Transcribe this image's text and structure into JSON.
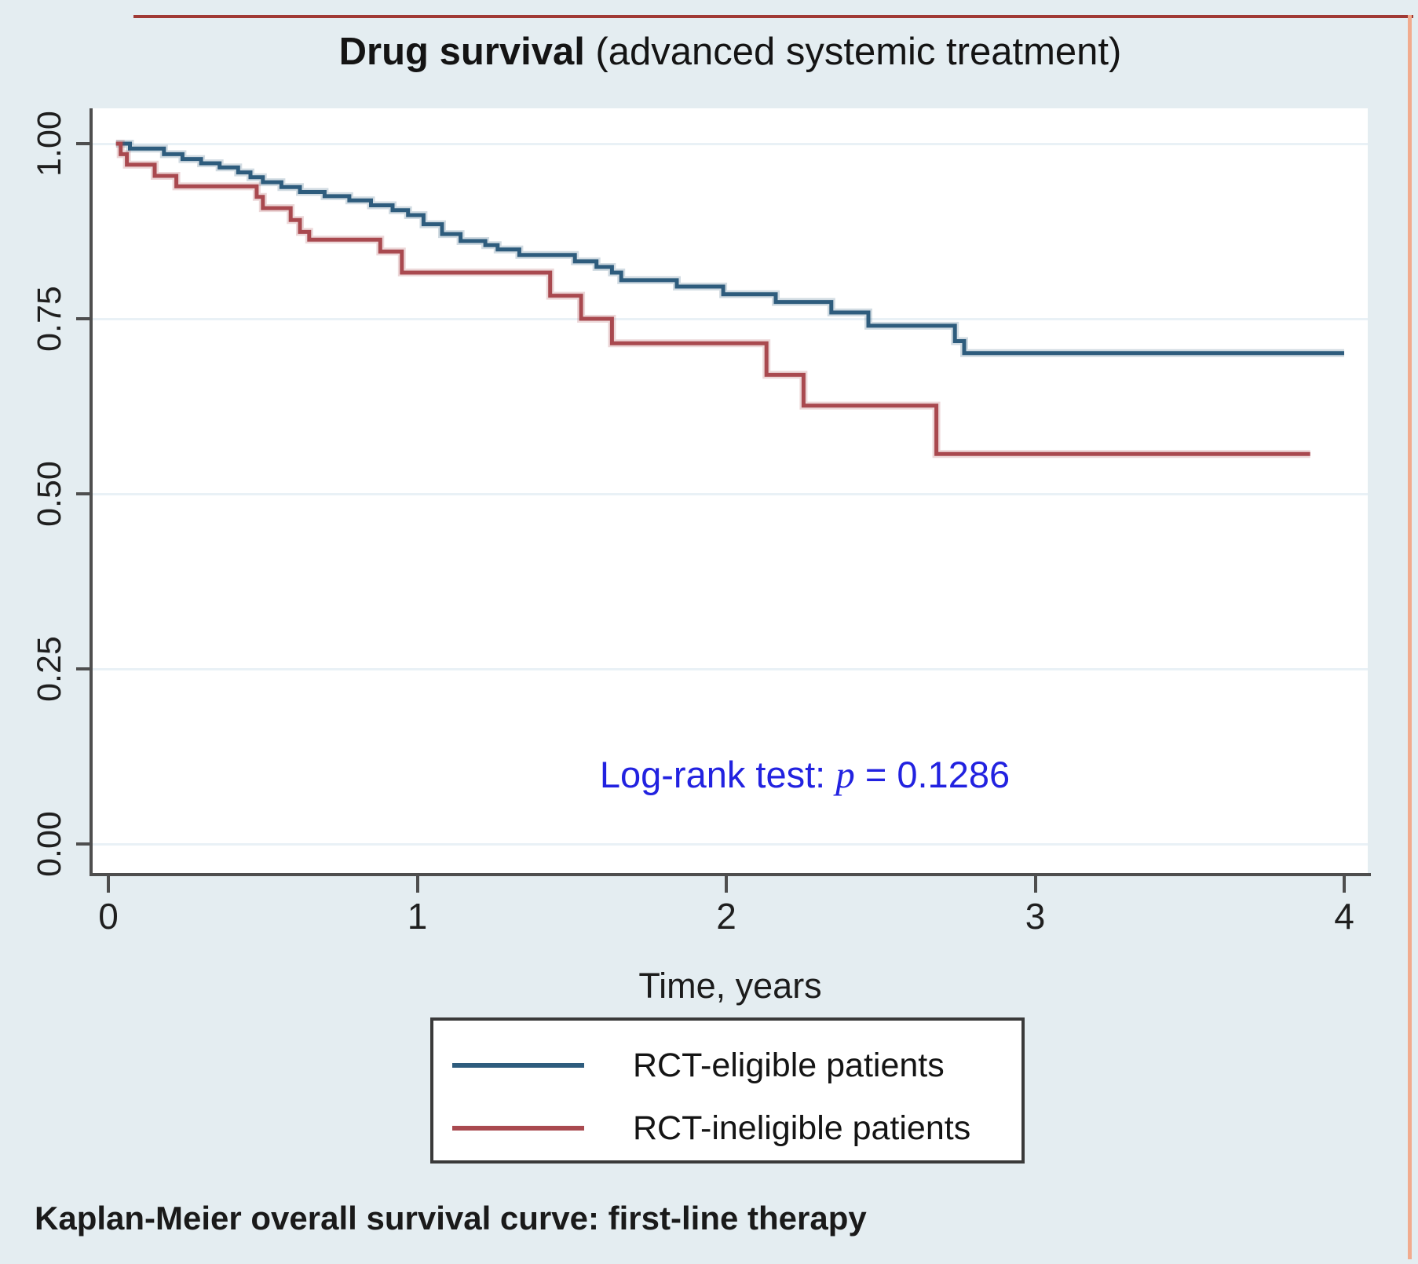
{
  "title": {
    "bold": "Drug survival",
    "rest": " (advanced systemic treatment)"
  },
  "annotation": {
    "prefix": "Log-rank test: ",
    "p": "p",
    "rest": " = 0.1286",
    "color": "#2222e0"
  },
  "axes": {
    "x": {
      "label": "Time, years",
      "tick_labels": [
        "0",
        "1",
        "2",
        "3",
        "4"
      ]
    },
    "y": {
      "tick_labels": [
        "1.00",
        "0.75",
        "0.50",
        "0.25",
        "0.00"
      ]
    }
  },
  "legend": {
    "items": [
      {
        "label": "RCT-eligible patients",
        "color": "#2e5c7d"
      },
      {
        "label": "RCT-ineligible patients",
        "color": "#a9494f"
      }
    ]
  },
  "caption": "Kaplan-Meier overall survival curve: first-line therapy",
  "colors": {
    "background": "#e4edf1",
    "plot_background": "#ffffff",
    "gridline": "#e9f1f6",
    "axis": "#4e4e4e",
    "eligible_curve": "#2e5c7d",
    "ineligible_curve": "#a9494f",
    "annotation_text": "#2222e0"
  },
  "chart_data": {
    "type": "line",
    "subtype": "kaplan-meier-step",
    "title": "Drug survival (advanced systemic treatment)",
    "xlabel": "Time, years",
    "ylabel": "",
    "xlim": [
      0,
      4
    ],
    "ylim": [
      0,
      1
    ],
    "xticks": [
      0,
      1,
      2,
      3,
      4
    ],
    "yticks": [
      1.0,
      0.75,
      0.5,
      0.25,
      0.0
    ],
    "grid": "horizontal",
    "legend_position": "below",
    "annotation": "Log-rank test: p = 0.1286",
    "series": [
      {
        "name": "RCT-eligible patients",
        "color": "#2e5c7d",
        "start": [
          0.025,
          1.0
        ],
        "end_time": 4.0,
        "drops": [
          [
            0.07,
            0.993
          ],
          [
            0.18,
            0.985
          ],
          [
            0.24,
            0.978
          ],
          [
            0.3,
            0.972
          ],
          [
            0.36,
            0.966
          ],
          [
            0.42,
            0.959
          ],
          [
            0.46,
            0.952
          ],
          [
            0.5,
            0.945
          ],
          [
            0.56,
            0.938
          ],
          [
            0.62,
            0.931
          ],
          [
            0.7,
            0.925
          ],
          [
            0.78,
            0.919
          ],
          [
            0.85,
            0.912
          ],
          [
            0.92,
            0.905
          ],
          [
            0.97,
            0.898
          ],
          [
            1.02,
            0.885
          ],
          [
            1.08,
            0.871
          ],
          [
            1.14,
            0.861
          ],
          [
            1.22,
            0.855
          ],
          [
            1.26,
            0.849
          ],
          [
            1.33,
            0.841
          ],
          [
            1.51,
            0.832
          ],
          [
            1.58,
            0.824
          ],
          [
            1.63,
            0.816
          ],
          [
            1.66,
            0.805
          ],
          [
            1.84,
            0.796
          ],
          [
            1.99,
            0.785
          ],
          [
            2.16,
            0.774
          ],
          [
            2.34,
            0.759
          ],
          [
            2.46,
            0.74
          ],
          [
            2.74,
            0.718
          ],
          [
            2.77,
            0.701
          ]
        ]
      },
      {
        "name": "RCT-ineligible patients",
        "color": "#a9494f",
        "start": [
          0.025,
          1.0
        ],
        "end_time": 3.89,
        "drops": [
          [
            0.04,
            0.985
          ],
          [
            0.06,
            0.97
          ],
          [
            0.15,
            0.954
          ],
          [
            0.22,
            0.939
          ],
          [
            0.48,
            0.924
          ],
          [
            0.5,
            0.908
          ],
          [
            0.59,
            0.891
          ],
          [
            0.62,
            0.874
          ],
          [
            0.65,
            0.863
          ],
          [
            0.88,
            0.846
          ],
          [
            0.95,
            0.816
          ],
          [
            1.43,
            0.783
          ],
          [
            1.53,
            0.75
          ],
          [
            1.63,
            0.715
          ],
          [
            2.13,
            0.67
          ],
          [
            2.25,
            0.626
          ],
          [
            2.68,
            0.557
          ]
        ]
      }
    ]
  }
}
